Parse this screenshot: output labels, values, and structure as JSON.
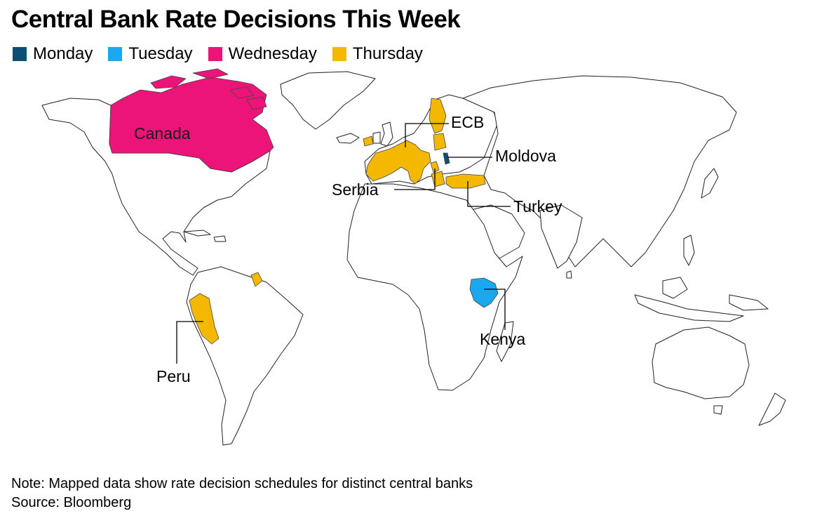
{
  "title": "Central Bank Rate Decisions This Week",
  "legend": [
    {
      "label": "Monday",
      "color": "#0b4f73"
    },
    {
      "label": "Tuesday",
      "color": "#1aa9ef"
    },
    {
      "label": "Wednesday",
      "color": "#ec1479"
    },
    {
      "label": "Thursday",
      "color": "#f5b800"
    }
  ],
  "map": {
    "type": "world choropleth",
    "highlighted": [
      {
        "name": "Canada",
        "day": "Wednesday"
      },
      {
        "name": "Moldova",
        "day": "Monday"
      },
      {
        "name": "Kenya",
        "day": "Tuesday"
      },
      {
        "name": "ECB",
        "day": "Thursday"
      },
      {
        "name": "Serbia",
        "day": "Thursday"
      },
      {
        "name": "Turkey",
        "day": "Thursday"
      },
      {
        "name": "Peru",
        "day": "Thursday"
      }
    ],
    "labels": {
      "canada": "Canada",
      "ecb": "ECB",
      "moldova": "Moldova",
      "serbia": "Serbia",
      "turkey": "Turkey",
      "kenya": "Kenya",
      "peru": "Peru"
    }
  },
  "footer": {
    "note": "Note: Mapped data show rate decision schedules for distinct central banks",
    "source": "Source: Bloomberg"
  }
}
